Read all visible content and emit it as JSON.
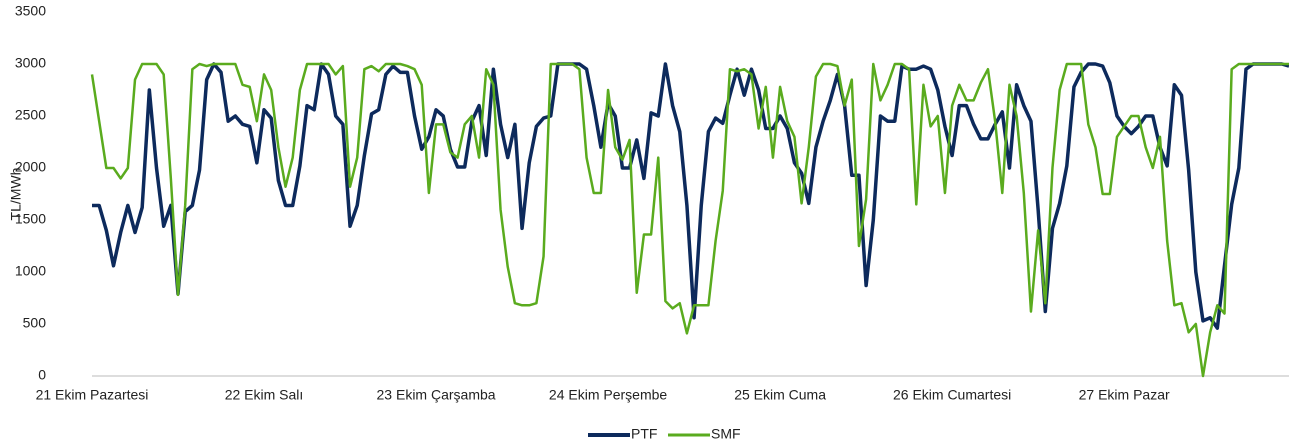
{
  "chart_data": {
    "type": "line",
    "y_label": "TL/MWh",
    "categories": [
      "21 Ekim Pazartesi",
      null,
      null,
      null,
      null,
      null,
      null,
      null,
      null,
      null,
      null,
      null,
      null,
      null,
      null,
      null,
      null,
      null,
      null,
      null,
      null,
      null,
      null,
      null,
      "22 Ekim Salı",
      null,
      null,
      null,
      null,
      null,
      null,
      null,
      null,
      null,
      null,
      null,
      null,
      null,
      null,
      null,
      null,
      null,
      null,
      null,
      null,
      null,
      null,
      null,
      "23 Ekim Çarşamba",
      null,
      null,
      null,
      null,
      null,
      null,
      null,
      null,
      null,
      null,
      null,
      null,
      null,
      null,
      null,
      null,
      null,
      null,
      null,
      null,
      null,
      null,
      null,
      "24 Ekim Perşembe",
      null,
      null,
      null,
      null,
      null,
      null,
      null,
      null,
      null,
      null,
      null,
      null,
      null,
      null,
      null,
      null,
      null,
      null,
      null,
      null,
      null,
      null,
      null,
      "25 Ekim Cuma",
      null,
      null,
      null,
      null,
      null,
      null,
      null,
      null,
      null,
      null,
      null,
      null,
      null,
      null,
      null,
      null,
      null,
      null,
      null,
      null,
      null,
      null,
      null,
      "26 Ekim Cumartesi",
      null,
      null,
      null,
      null,
      null,
      null,
      null,
      null,
      null,
      null,
      null,
      null,
      null,
      null,
      null,
      null,
      null,
      null,
      null,
      null,
      null,
      null,
      null,
      "27 Ekim Pazar",
      null,
      null,
      null,
      null,
      null,
      null,
      null,
      null,
      null,
      null,
      null,
      null,
      null,
      null,
      null,
      null,
      null,
      null,
      null,
      null,
      null,
      null,
      null
    ],
    "series": [
      {
        "name": "PTF",
        "color": "#0d2a5c",
        "values": [
          1640,
          1640,
          1400,
          1060,
          1380,
          1640,
          1380,
          1620,
          2750,
          2000,
          1440,
          1640,
          790,
          1580,
          1640,
          1980,
          2850,
          3000,
          2920,
          2450,
          2500,
          2420,
          2400,
          2050,
          2560,
          2480,
          1880,
          1640,
          1640,
          2020,
          2600,
          2560,
          3000,
          2900,
          2500,
          2420,
          1440,
          1640,
          2120,
          2520,
          2560,
          2900,
          2980,
          2920,
          2920,
          2500,
          2180,
          2300,
          2560,
          2500,
          2180,
          2010,
          2010,
          2450,
          2600,
          2120,
          2950,
          2420,
          2100,
          2420,
          1420,
          2050,
          2400,
          2480,
          2500,
          3000,
          3000,
          3000,
          3000,
          2950,
          2600,
          2200,
          2620,
          2500,
          2000,
          2000,
          2270,
          1900,
          2530,
          2500,
          3000,
          2600,
          2350,
          1640,
          560,
          1640,
          2350,
          2480,
          2430,
          2700,
          2950,
          2700,
          2950,
          2750,
          2380,
          2380,
          2500,
          2380,
          2050,
          1950,
          1660,
          2200,
          2450,
          2650,
          2900,
          2600,
          1930,
          1930,
          870,
          1500,
          2500,
          2450,
          2450,
          2980,
          2950,
          2950,
          2980,
          2950,
          2750,
          2400,
          2120,
          2600,
          2600,
          2420,
          2280,
          2280,
          2420,
          2540,
          2000,
          2800,
          2600,
          2450,
          1600,
          620,
          1420,
          1660,
          2020,
          2780,
          2920,
          3000,
          3000,
          2980,
          2820,
          2500,
          2400,
          2330,
          2400,
          2500,
          2500,
          2200,
          2020,
          2800,
          2700,
          1980,
          1000,
          530,
          560,
          460,
          1060,
          1650,
          2000,
          2950,
          3000,
          3000,
          3000,
          3000,
          3000,
          2980
        ]
      },
      {
        "name": "SMF",
        "color": "#5aab1e",
        "values": [
          2900,
          2450,
          2000,
          2000,
          1900,
          2000,
          2850,
          3000,
          3000,
          3000,
          2900,
          1900,
          780,
          1640,
          2950,
          3000,
          2980,
          3000,
          3000,
          3000,
          3000,
          2800,
          2780,
          2450,
          2900,
          2750,
          2200,
          1820,
          2100,
          2750,
          3000,
          3000,
          3000,
          3000,
          2900,
          2980,
          1820,
          2100,
          2950,
          2980,
          2930,
          3000,
          3000,
          3000,
          2980,
          2950,
          2800,
          1760,
          2420,
          2420,
          2150,
          2100,
          2420,
          2500,
          2100,
          2950,
          2800,
          1600,
          1050,
          700,
          680,
          680,
          700,
          1150,
          3000,
          3000,
          3000,
          3000,
          2950,
          2100,
          1760,
          1760,
          2750,
          2200,
          2080,
          2270,
          800,
          1360,
          1360,
          2100,
          720,
          650,
          700,
          410,
          680,
          680,
          680,
          1300,
          1780,
          2950,
          2930,
          2950,
          2900,
          2380,
          2780,
          2100,
          2780,
          2450,
          2300,
          1660,
          2200,
          2880,
          3000,
          3000,
          2980,
          2600,
          2850,
          1250,
          1700,
          3000,
          2650,
          2800,
          3000,
          3000,
          2950,
          1650,
          2800,
          2400,
          2500,
          1760,
          2600,
          2800,
          2650,
          2650,
          2820,
          2950,
          2450,
          1760,
          2800,
          2500,
          1760,
          620,
          1400,
          700,
          2000,
          2750,
          3000,
          3000,
          3000,
          2420,
          2200,
          1750,
          1750,
          2300,
          2400,
          2500,
          2500,
          2200,
          2000,
          2300,
          1300,
          680,
          700,
          420,
          500,
          0,
          420,
          680,
          600,
          2950,
          3000,
          3000,
          3000,
          3000,
          3000,
          3000,
          3000,
          3000
        ]
      }
    ],
    "ylim": [
      0,
      3500
    ],
    "yticks": [
      0,
      500,
      1000,
      1500,
      2000,
      2500,
      3000,
      3500
    ],
    "grid": false,
    "legend": "bottom"
  }
}
